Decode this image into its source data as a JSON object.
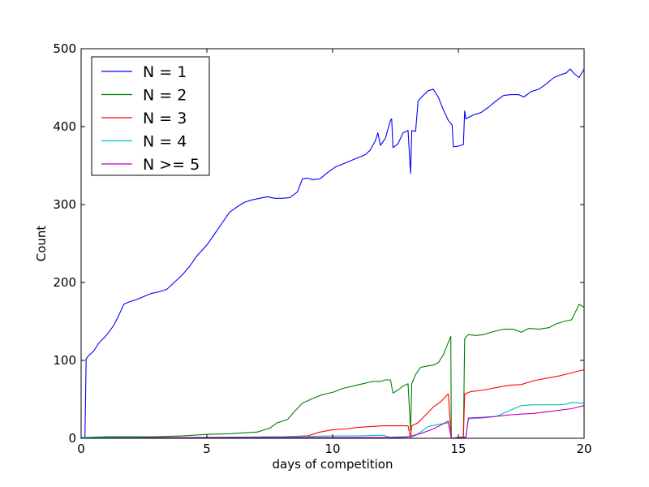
{
  "chart_data": {
    "type": "line",
    "xlabel": "days of competition",
    "ylabel": "Count",
    "xlim": [
      0,
      20
    ],
    "ylim": [
      0,
      500
    ],
    "xticks": [
      0,
      5,
      10,
      15,
      20
    ],
    "yticks": [
      0,
      100,
      200,
      300,
      400,
      500
    ],
    "grid": false,
    "legend_position": "top-left",
    "series": [
      {
        "name": "N = 1",
        "color": "#0000ff",
        "points": [
          [
            0.0,
            0
          ],
          [
            0.15,
            0
          ],
          [
            0.2,
            102
          ],
          [
            0.3,
            106
          ],
          [
            0.5,
            112
          ],
          [
            0.7,
            122
          ],
          [
            1.0,
            132
          ],
          [
            1.3,
            145
          ],
          [
            1.5,
            158
          ],
          [
            1.7,
            172
          ],
          [
            1.9,
            175
          ],
          [
            2.2,
            178
          ],
          [
            2.5,
            182
          ],
          [
            2.8,
            186
          ],
          [
            3.1,
            188
          ],
          [
            3.4,
            191
          ],
          [
            3.7,
            200
          ],
          [
            4.0,
            209
          ],
          [
            4.3,
            220
          ],
          [
            4.6,
            234
          ],
          [
            5.0,
            248
          ],
          [
            5.3,
            262
          ],
          [
            5.6,
            276
          ],
          [
            5.9,
            290
          ],
          [
            6.2,
            297
          ],
          [
            6.5,
            303
          ],
          [
            6.8,
            306
          ],
          [
            7.1,
            308
          ],
          [
            7.4,
            310
          ],
          [
            7.7,
            308
          ],
          [
            8.0,
            308
          ],
          [
            8.3,
            309
          ],
          [
            8.6,
            316
          ],
          [
            8.8,
            333
          ],
          [
            9.0,
            334
          ],
          [
            9.2,
            332
          ],
          [
            9.5,
            333
          ],
          [
            9.8,
            341
          ],
          [
            10.1,
            348
          ],
          [
            10.4,
            352
          ],
          [
            10.7,
            356
          ],
          [
            11.0,
            360
          ],
          [
            11.3,
            364
          ],
          [
            11.5,
            370
          ],
          [
            11.7,
            382
          ],
          [
            11.8,
            392
          ],
          [
            11.9,
            376
          ],
          [
            12.1,
            385
          ],
          [
            12.3,
            408
          ],
          [
            12.35,
            410
          ],
          [
            12.4,
            373
          ],
          [
            12.6,
            378
          ],
          [
            12.8,
            392
          ],
          [
            13.0,
            395
          ],
          [
            13.1,
            340
          ],
          [
            13.15,
            395
          ],
          [
            13.3,
            394
          ],
          [
            13.4,
            433
          ],
          [
            13.6,
            440
          ],
          [
            13.8,
            446
          ],
          [
            14.0,
            448
          ],
          [
            14.2,
            438
          ],
          [
            14.4,
            422
          ],
          [
            14.6,
            408
          ],
          [
            14.75,
            402
          ],
          [
            14.8,
            374
          ],
          [
            15.0,
            375
          ],
          [
            15.2,
            377
          ],
          [
            15.25,
            420
          ],
          [
            15.3,
            410
          ],
          [
            15.6,
            415
          ],
          [
            15.9,
            418
          ],
          [
            16.2,
            425
          ],
          [
            16.5,
            433
          ],
          [
            16.8,
            440
          ],
          [
            17.1,
            441
          ],
          [
            17.4,
            441
          ],
          [
            17.6,
            438
          ],
          [
            17.9,
            445
          ],
          [
            18.2,
            448
          ],
          [
            18.5,
            455
          ],
          [
            18.8,
            463
          ],
          [
            19.1,
            467
          ],
          [
            19.3,
            469
          ],
          [
            19.45,
            474
          ],
          [
            19.6,
            468
          ],
          [
            19.8,
            463
          ],
          [
            20.0,
            474
          ]
        ]
      },
      {
        "name": "N = 2",
        "color": "#008000",
        "points": [
          [
            0.0,
            1
          ],
          [
            1.0,
            2
          ],
          [
            2.0,
            2
          ],
          [
            3.0,
            2
          ],
          [
            4.0,
            3
          ],
          [
            5.0,
            5
          ],
          [
            6.0,
            6
          ],
          [
            7.0,
            8
          ],
          [
            7.5,
            13
          ],
          [
            7.8,
            20
          ],
          [
            8.2,
            24
          ],
          [
            8.5,
            35
          ],
          [
            8.8,
            45
          ],
          [
            9.2,
            51
          ],
          [
            9.6,
            56
          ],
          [
            10.0,
            59
          ],
          [
            10.4,
            64
          ],
          [
            10.8,
            67
          ],
          [
            11.2,
            70
          ],
          [
            11.6,
            73
          ],
          [
            11.9,
            73
          ],
          [
            12.1,
            75
          ],
          [
            12.3,
            75
          ],
          [
            12.4,
            58
          ],
          [
            12.6,
            62
          ],
          [
            12.8,
            67
          ],
          [
            13.0,
            70
          ],
          [
            13.1,
            10
          ],
          [
            13.15,
            70
          ],
          [
            13.3,
            82
          ],
          [
            13.5,
            91
          ],
          [
            13.8,
            93
          ],
          [
            14.0,
            94
          ],
          [
            14.2,
            97
          ],
          [
            14.4,
            107
          ],
          [
            14.6,
            123
          ],
          [
            14.7,
            131
          ],
          [
            14.72,
            0
          ],
          [
            15.0,
            1
          ],
          [
            15.2,
            2
          ],
          [
            15.25,
            128
          ],
          [
            15.4,
            133
          ],
          [
            15.7,
            132
          ],
          [
            16.0,
            133
          ],
          [
            16.4,
            137
          ],
          [
            16.8,
            140
          ],
          [
            17.2,
            140
          ],
          [
            17.5,
            136
          ],
          [
            17.8,
            141
          ],
          [
            18.2,
            140
          ],
          [
            18.6,
            142
          ],
          [
            18.9,
            147
          ],
          [
            19.2,
            150
          ],
          [
            19.5,
            152
          ],
          [
            19.7,
            165
          ],
          [
            19.8,
            172
          ],
          [
            20.0,
            168
          ]
        ]
      },
      {
        "name": "N = 3",
        "color": "#ff0000",
        "points": [
          [
            0.0,
            1
          ],
          [
            2.0,
            1
          ],
          [
            4.0,
            1
          ],
          [
            6.0,
            1
          ],
          [
            8.0,
            2
          ],
          [
            9.0,
            3
          ],
          [
            9.5,
            8
          ],
          [
            10.0,
            11
          ],
          [
            10.5,
            12
          ],
          [
            11.0,
            14
          ],
          [
            11.5,
            15
          ],
          [
            12.0,
            16
          ],
          [
            12.5,
            16
          ],
          [
            13.0,
            16
          ],
          [
            13.1,
            1
          ],
          [
            13.15,
            16
          ],
          [
            13.4,
            20
          ],
          [
            13.7,
            30
          ],
          [
            14.0,
            40
          ],
          [
            14.3,
            47
          ],
          [
            14.6,
            57
          ],
          [
            14.72,
            0
          ],
          [
            15.0,
            1
          ],
          [
            15.2,
            1
          ],
          [
            15.25,
            57
          ],
          [
            15.5,
            60
          ],
          [
            16.0,
            62
          ],
          [
            16.5,
            65
          ],
          [
            17.0,
            68
          ],
          [
            17.5,
            69
          ],
          [
            18.0,
            74
          ],
          [
            18.5,
            77
          ],
          [
            19.0,
            80
          ],
          [
            19.5,
            84
          ],
          [
            20.0,
            88
          ]
        ]
      },
      {
        "name": "N = 4",
        "color": "#00bfbf",
        "points": [
          [
            0.0,
            1
          ],
          [
            4.0,
            1
          ],
          [
            8.0,
            2
          ],
          [
            10.0,
            3
          ],
          [
            11.0,
            3
          ],
          [
            12.0,
            4
          ],
          [
            12.3,
            1
          ],
          [
            12.8,
            1
          ],
          [
            13.2,
            2
          ],
          [
            13.5,
            8
          ],
          [
            13.8,
            15
          ],
          [
            14.1,
            17
          ],
          [
            14.4,
            19
          ],
          [
            14.6,
            20
          ],
          [
            14.72,
            0
          ],
          [
            15.0,
            1
          ],
          [
            15.3,
            2
          ],
          [
            15.4,
            25
          ],
          [
            16.0,
            26
          ],
          [
            16.5,
            28
          ],
          [
            17.0,
            35
          ],
          [
            17.5,
            42
          ],
          [
            18.0,
            43
          ],
          [
            18.5,
            43
          ],
          [
            19.0,
            43
          ],
          [
            19.3,
            44
          ],
          [
            19.5,
            46
          ],
          [
            20.0,
            45
          ]
        ]
      },
      {
        "name": "N >= 5",
        "color": "#bf00bf",
        "points": [
          [
            0.0,
            0
          ],
          [
            4.0,
            1
          ],
          [
            8.0,
            1
          ],
          [
            12.0,
            1
          ],
          [
            13.0,
            2
          ],
          [
            13.5,
            6
          ],
          [
            14.0,
            12
          ],
          [
            14.3,
            17
          ],
          [
            14.6,
            22
          ],
          [
            14.72,
            0
          ],
          [
            15.0,
            1
          ],
          [
            15.3,
            1
          ],
          [
            15.4,
            26
          ],
          [
            16.0,
            27
          ],
          [
            16.5,
            28
          ],
          [
            17.0,
            30
          ],
          [
            17.5,
            31
          ],
          [
            18.0,
            32
          ],
          [
            18.5,
            34
          ],
          [
            19.0,
            36
          ],
          [
            19.5,
            38
          ],
          [
            20.0,
            42
          ]
        ]
      }
    ]
  }
}
